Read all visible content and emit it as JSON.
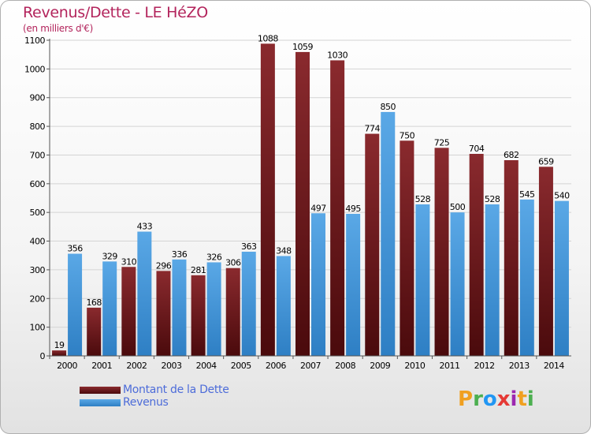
{
  "title": "Revenus/Dette - LE HéZO",
  "unit_label": "(en milliers d'€)",
  "logo": {
    "letters": [
      "P",
      "r",
      "o",
      "x",
      "i",
      "t",
      "i"
    ],
    "colors": [
      "#f0a020",
      "#4caf50",
      "#2196f3",
      "#e53935",
      "#9c27b0",
      "#f0a020",
      "#4caf50"
    ]
  },
  "colors": {
    "dette_top": "#8a2a2e",
    "dette_bottom": "#4a0a0c",
    "revenus_top": "#5aa8e6",
    "revenus_bottom": "#2e7fc4"
  },
  "legend": [
    {
      "label": "Montant de la Dette",
      "series": 0
    },
    {
      "label": "Revenus",
      "series": 1
    }
  ],
  "chart_data": {
    "type": "bar",
    "categories": [
      "2000",
      "2001",
      "2002",
      "2003",
      "2004",
      "2005",
      "2006",
      "2007",
      "2008",
      "2009",
      "2010",
      "2011",
      "2012",
      "2013",
      "2014"
    ],
    "series": [
      {
        "name": "Montant de la Dette",
        "values": [
          19,
          168,
          310,
          296,
          281,
          306,
          1088,
          1059,
          1030,
          774,
          750,
          725,
          704,
          682,
          659
        ],
        "labels": [
          "19",
          "168",
          "310",
          "296",
          "281",
          "306",
          "1088",
          "1059",
          "1030",
          "774",
          "750",
          "725",
          "704",
          "682",
          "659"
        ]
      },
      {
        "name": "Revenus",
        "values": [
          356,
          329,
          433,
          336,
          326,
          363,
          348,
          497,
          495,
          850,
          528,
          500,
          528,
          545,
          540
        ],
        "labels": [
          "356",
          "329",
          "433",
          "336",
          "326",
          "363",
          "348",
          "497",
          "495",
          "850",
          "528",
          "500",
          "528",
          "545",
          "540"
        ]
      }
    ],
    "yticks": [
      0,
      100,
      200,
      300,
      400,
      500,
      600,
      700,
      800,
      900,
      1000,
      1100
    ],
    "ylim": [
      0,
      1100
    ],
    "grid": "horizontal",
    "legend_position": "bottom-left"
  }
}
